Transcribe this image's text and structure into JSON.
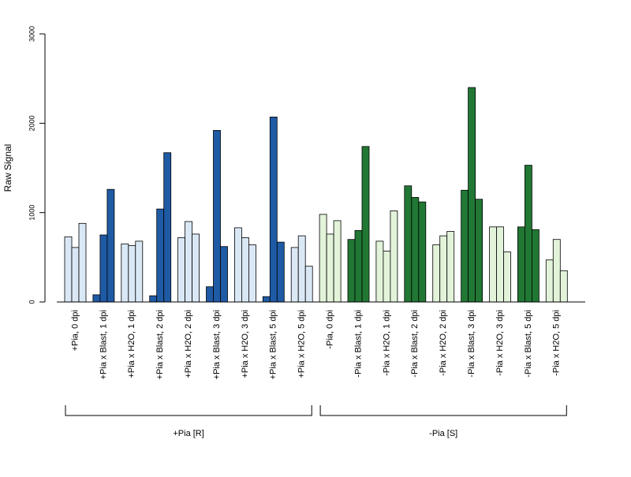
{
  "chart_data": {
    "type": "bar",
    "ylabel": "Raw Signal",
    "xlabel": "",
    "ylim": [
      0,
      3000
    ],
    "yticks": [
      0,
      1000,
      2000,
      3000
    ],
    "categories": [
      "+Pia, 0 dpi",
      "+Pia x Blast, 1 dpi",
      "+Pia x H2O, 1 dpi",
      "+Pia x Blast, 2 dpi",
      "+Pia x H2O, 2 dpi",
      "+Pia x Blast, 3 dpi",
      "+Pia x H2O, 3 dpi",
      "+Pia x Blast, 5 dpi",
      "+Pia x H2O, 5 dpi",
      "-Pia, 0 dpi",
      "-Pia x Blast, 1 dpi",
      "-Pia x H2O, 1 dpi",
      "-Pia x Blast, 2 dpi",
      "-Pia x H2O, 2 dpi",
      "-Pia x Blast, 3 dpi",
      "-Pia x H2O, 3 dpi",
      "-Pia x Blast, 5 dpi",
      "-Pia x H2O, 5 dpi"
    ],
    "values": [
      [
        730,
        610,
        880
      ],
      [
        80,
        750,
        1260
      ],
      [
        650,
        630,
        680
      ],
      [
        70,
        1040,
        1670
      ],
      [
        720,
        900,
        760
      ],
      [
        170,
        1920,
        620
      ],
      [
        830,
        720,
        640
      ],
      [
        60,
        2070,
        670
      ],
      [
        610,
        740,
        400
      ],
      [
        980,
        760,
        910
      ],
      [
        700,
        800,
        1740
      ],
      [
        680,
        570,
        1020
      ],
      [
        1300,
        1170,
        1120
      ],
      [
        640,
        740,
        790
      ],
      [
        1250,
        2400,
        1150
      ],
      [
        840,
        840,
        560
      ],
      [
        840,
        1530,
        810
      ],
      [
        470,
        700,
        350
      ]
    ],
    "bar_colors": [
      "#dae8f6",
      "#1f5aa4",
      "#dae8f6",
      "#1f5aa4",
      "#dae8f6",
      "#1f5aa4",
      "#dae8f6",
      "#1f5aa4",
      "#dae8f6",
      "#e2f3d9",
      "#217734",
      "#e2f3d9",
      "#217734",
      "#e2f3d9",
      "#217734",
      "#e2f3d9",
      "#217734",
      "#e2f3d9"
    ],
    "groups": [
      {
        "label": "+Pia [R]",
        "start": 0,
        "end": 8
      },
      {
        "label": "-Pia [S]",
        "start": 9,
        "end": 17
      }
    ],
    "grid": false,
    "legend": "none"
  }
}
